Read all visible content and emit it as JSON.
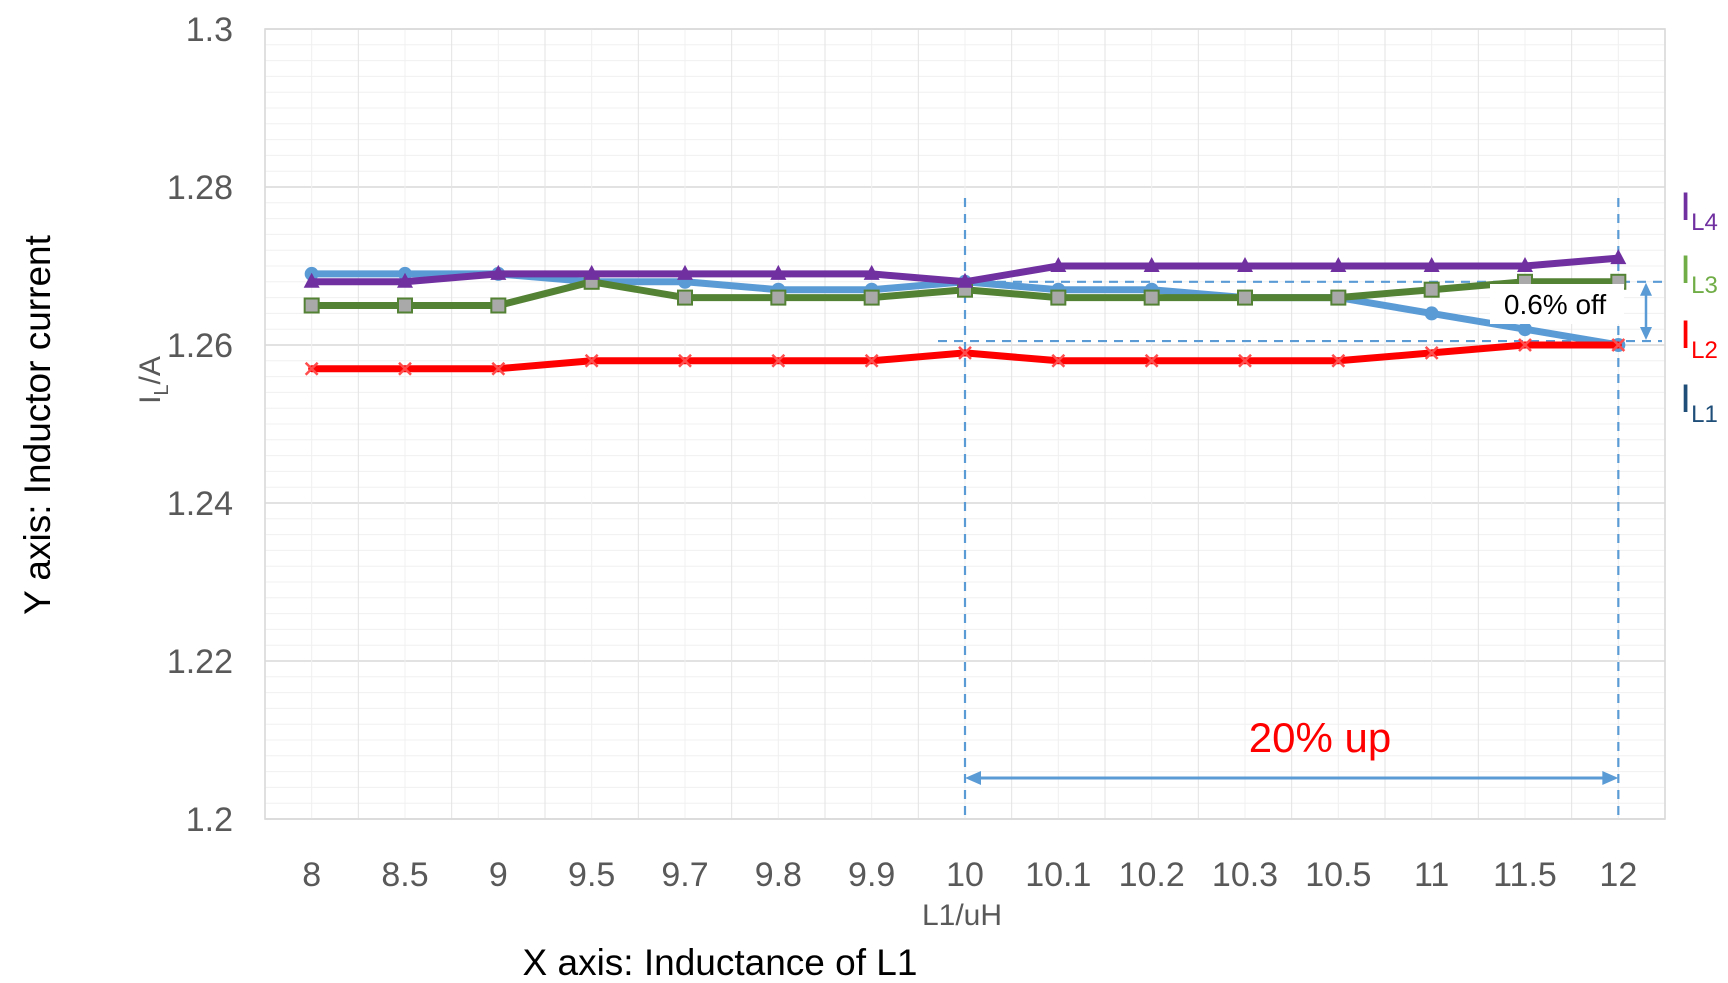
{
  "chart_data": {
    "type": "line",
    "categories": [
      "8",
      "8.5",
      "9",
      "9.5",
      "9.7",
      "9.8",
      "9.9",
      "10",
      "10.1",
      "10.2",
      "10.3",
      "10.5",
      "11",
      "11.5",
      "12"
    ],
    "ylim": [
      1.2,
      1.3
    ],
    "yticks": [
      "1.2",
      "1.22",
      "1.24",
      "1.26",
      "1.28",
      "1.3"
    ],
    "grid": true,
    "xlabel": "L1/uH",
    "ylabel_base": "I",
    "ylabel_sub": "L",
    "ylabel_rest": "/A",
    "x_caption": "X axis: Inductance of L1",
    "y_caption": "Y axis: Inductor current",
    "series": [
      {
        "label_base": "I",
        "label_sub": "L4",
        "color": "#7030A0",
        "marker": "triangle",
        "values": [
          1.268,
          1.268,
          1.269,
          1.269,
          1.269,
          1.269,
          1.269,
          1.268,
          1.27,
          1.27,
          1.27,
          1.27,
          1.27,
          1.27,
          1.271
        ]
      },
      {
        "label_base": "I",
        "label_sub": "L3",
        "color": "#548235",
        "label_color": "#70AD47",
        "marker": "square",
        "values": [
          1.265,
          1.265,
          1.265,
          1.268,
          1.266,
          1.266,
          1.266,
          1.267,
          1.266,
          1.266,
          1.266,
          1.266,
          1.267,
          1.268,
          1.268
        ]
      },
      {
        "label_base": "I",
        "label_sub": "L2",
        "color": "#FF0000",
        "marker": "x",
        "values": [
          1.257,
          1.257,
          1.257,
          1.258,
          1.258,
          1.258,
          1.258,
          1.259,
          1.258,
          1.258,
          1.258,
          1.258,
          1.259,
          1.26,
          1.26
        ]
      },
      {
        "label_base": "I",
        "label_sub": "L1",
        "color": "#5B9BD5",
        "label_color": "#1F4E79",
        "marker": "circle",
        "values": [
          1.269,
          1.269,
          1.269,
          1.268,
          1.268,
          1.267,
          1.267,
          1.268,
          1.267,
          1.267,
          1.266,
          1.266,
          1.264,
          1.262,
          1.26
        ]
      }
    ],
    "annotations": {
      "range_text": "20% up",
      "range_color": "#FF0000",
      "range_from": "10",
      "range_to": "12",
      "off_text": "0.6% off",
      "off_levels": [
        1.268,
        1.2605
      ],
      "guide_color": "#5B9BD5"
    }
  }
}
